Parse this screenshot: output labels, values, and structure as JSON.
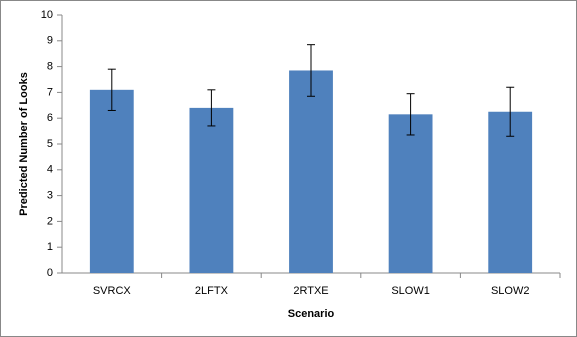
{
  "chart_data": {
    "type": "bar",
    "categories": [
      "SVRCX",
      "2LFTX",
      "2RTXE",
      "SLOW1",
      "SLOW2"
    ],
    "values": [
      7.1,
      6.4,
      7.85,
      6.15,
      6.25
    ],
    "errors": [
      0.8,
      0.7,
      1.0,
      0.8,
      0.95
    ],
    "color": "#4f81bd",
    "xlabel": "Scenario",
    "ylabel": "Predicted Number of Looks",
    "ylim": [
      0,
      10
    ],
    "yticks": [
      0,
      1,
      2,
      3,
      4,
      5,
      6,
      7,
      8,
      9,
      10
    ],
    "grid": false
  }
}
